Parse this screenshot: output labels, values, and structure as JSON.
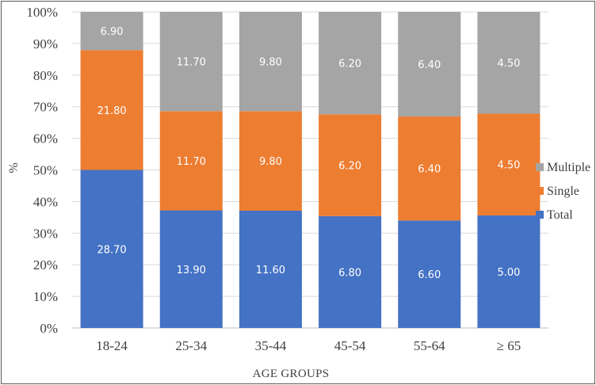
{
  "chart_data": {
    "type": "bar",
    "stacked": true,
    "percent_axis": true,
    "categories": [
      "18-24",
      "25-34",
      "35-44",
      "45-54",
      "55-64",
      "≥ 65"
    ],
    "series": [
      {
        "name": "Total",
        "color": "#4472c4",
        "percent": [
          50,
          37.2,
          37.1,
          35.4,
          34,
          35.6
        ],
        "labels": [
          "28.70",
          "13.90",
          "11.60",
          "6.80",
          "6.60",
          "5.00"
        ]
      },
      {
        "name": "Single",
        "color": "#ed7d31",
        "percent": [
          37.9,
          31.4,
          31.5,
          32.2,
          32.9,
          32.2
        ],
        "labels": [
          "21.80",
          "11.70",
          "9.80",
          "6.20",
          "6.40",
          "4.50"
        ]
      },
      {
        "name": "Multiple",
        "color": "#a5a5a5",
        "percent": [
          12.1,
          31.4,
          31.4,
          32.4,
          33.1,
          32.2
        ],
        "labels": [
          "6.90",
          "11.70",
          "9.80",
          "6.20",
          "6.40",
          "4.50"
        ]
      }
    ],
    "yticks": [
      "0%",
      "10%",
      "20%",
      "30%",
      "40%",
      "50%",
      "60%",
      "70%",
      "80%",
      "90%",
      "100%"
    ],
    "ylim": [
      0,
      100
    ],
    "title": "",
    "xlabel": "AGE GROUPS",
    "ylabel": "%",
    "legend_position": "right",
    "legend_order": [
      "Multiple",
      "Single",
      "Total"
    ]
  }
}
